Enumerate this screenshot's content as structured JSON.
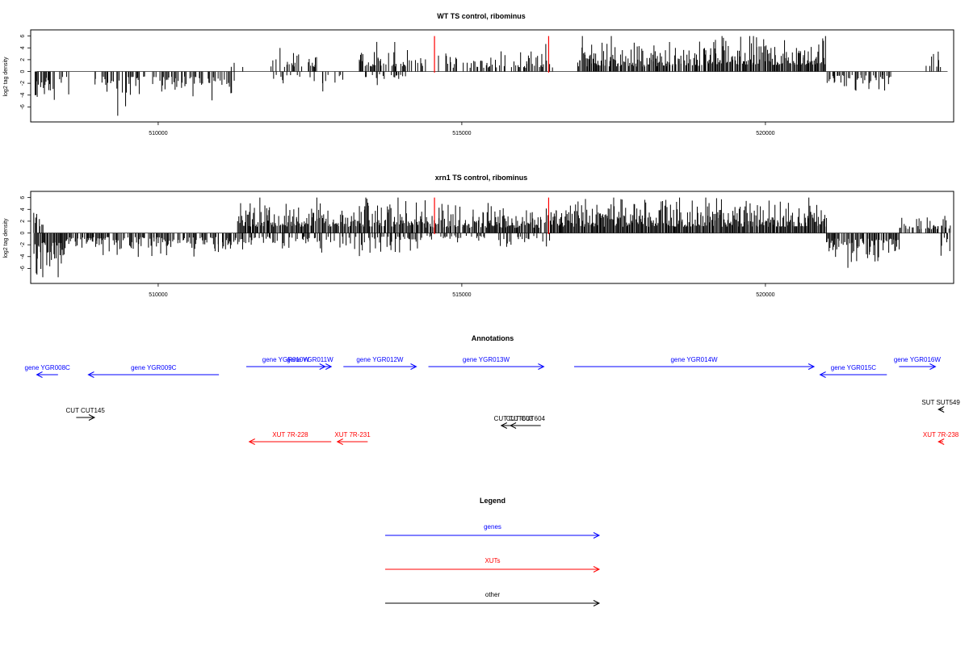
{
  "chart_data": [
    {
      "type": "bar",
      "title": "WT TS control, ribominus",
      "xlabel": "",
      "ylabel": "log2 tag density",
      "xlim": [
        507900,
        523100
      ],
      "ylim": [
        -8,
        6.5
      ],
      "x_ticks": [
        "510000",
        "515000",
        "520000"
      ],
      "y_ticks": [
        "-6",
        "-4",
        "-2",
        "0",
        "2",
        "4",
        "6"
      ],
      "markers": [
        514550,
        516430
      ],
      "marker_color": "#ff0000",
      "segments": [
        {
          "start": 507950,
          "end": 508550,
          "density": 0.55,
          "sign": -1,
          "amp": 2.6
        },
        {
          "start": 508950,
          "end": 511250,
          "density": 0.5,
          "sign": -1,
          "amp": 2.4
        },
        {
          "start": 511200,
          "end": 511400,
          "density": 0.2,
          "sign": 1,
          "amp": 1.0
        },
        {
          "start": 511800,
          "end": 512600,
          "density": 0.5,
          "sign": 1,
          "amp": 2.2
        },
        {
          "start": 511800,
          "end": 513100,
          "density": 0.25,
          "sign": -1,
          "amp": 1.6
        },
        {
          "start": 513300,
          "end": 514400,
          "density": 0.6,
          "sign": 1,
          "amp": 2.4
        },
        {
          "start": 513400,
          "end": 514200,
          "density": 0.2,
          "sign": -1,
          "amp": 1.2
        },
        {
          "start": 514600,
          "end": 516500,
          "density": 0.45,
          "sign": 1,
          "amp": 1.8
        },
        {
          "start": 516900,
          "end": 519000,
          "density": 0.85,
          "sign": 1,
          "amp": 2.4
        },
        {
          "start": 519000,
          "end": 521000,
          "density": 0.95,
          "sign": 1,
          "amp": 3.2
        },
        {
          "start": 521000,
          "end": 522100,
          "density": 0.5,
          "sign": -1,
          "amp": 1.6
        },
        {
          "start": 522600,
          "end": 522900,
          "density": 0.3,
          "sign": 1,
          "amp": 1.8
        }
      ],
      "grid": false
    },
    {
      "type": "bar",
      "title": "xrn1 TS control, ribominus",
      "xlabel": "",
      "ylabel": "log2 tag density",
      "xlim": [
        507900,
        523100
      ],
      "ylim": [
        -8,
        6.5
      ],
      "x_ticks": [
        "510000",
        "515000",
        "520000"
      ],
      "y_ticks": [
        "-6",
        "-4",
        "-2",
        "0",
        "2",
        "4",
        "6"
      ],
      "markers": [
        514550,
        516430
      ],
      "marker_color": "#ff0000",
      "segments": [
        {
          "start": 507950,
          "end": 508400,
          "density": 0.95,
          "sign": -1,
          "amp": 4.2
        },
        {
          "start": 507950,
          "end": 508100,
          "density": 0.6,
          "sign": 1,
          "amp": 2.0
        },
        {
          "start": 508400,
          "end": 511300,
          "density": 0.7,
          "sign": -1,
          "amp": 2.0
        },
        {
          "start": 511300,
          "end": 514400,
          "density": 0.9,
          "sign": 1,
          "amp": 3.0
        },
        {
          "start": 511300,
          "end": 514400,
          "density": 0.4,
          "sign": -1,
          "amp": 1.8
        },
        {
          "start": 514400,
          "end": 516500,
          "density": 0.9,
          "sign": 1,
          "amp": 2.5
        },
        {
          "start": 514400,
          "end": 516500,
          "density": 0.25,
          "sign": -1,
          "amp": 1.2
        },
        {
          "start": 516500,
          "end": 521000,
          "density": 1.0,
          "sign": 1,
          "amp": 3.0
        },
        {
          "start": 521000,
          "end": 522200,
          "density": 0.85,
          "sign": -1,
          "amp": 2.6
        },
        {
          "start": 522200,
          "end": 523050,
          "density": 0.7,
          "sign": 1,
          "amp": 1.8
        },
        {
          "start": 522800,
          "end": 523050,
          "density": 0.4,
          "sign": -1,
          "amp": 2.0
        }
      ],
      "grid": false
    },
    {
      "type": "annotation-track",
      "title": "Annotations",
      "xlim": [
        507900,
        523100
      ],
      "features": [
        {
          "label": "gene YGR008C",
          "class": "genes",
          "start": 508000,
          "end": 508350,
          "strand": "-",
          "row": 0
        },
        {
          "label": "gene YGR009C",
          "class": "genes",
          "start": 508850,
          "end": 511000,
          "strand": "-",
          "row": 0
        },
        {
          "label": "gene YGR010W",
          "class": "genes",
          "start": 511450,
          "end": 512750,
          "strand": "+",
          "row": 1
        },
        {
          "label": "gene YGR011W",
          "class": "genes",
          "start": 512150,
          "end": 512850,
          "strand": "+",
          "row": 1
        },
        {
          "label": "gene YGR012W",
          "class": "genes",
          "start": 513050,
          "end": 514250,
          "strand": "+",
          "row": 1
        },
        {
          "label": "gene YGR013W",
          "class": "genes",
          "start": 514450,
          "end": 516350,
          "strand": "+",
          "row": 1
        },
        {
          "label": "gene YGR014W",
          "class": "genes",
          "start": 516850,
          "end": 520800,
          "strand": "+",
          "row": 1
        },
        {
          "label": "gene YGR015C",
          "class": "genes",
          "start": 520900,
          "end": 522000,
          "strand": "-",
          "row": 0
        },
        {
          "label": "gene YGR016W",
          "class": "genes",
          "start": 522200,
          "end": 522800,
          "strand": "+",
          "row": 1
        },
        {
          "label": "CUT CUT145",
          "class": "other",
          "start": 508650,
          "end": 508950,
          "strand": "+",
          "row": 2
        },
        {
          "label": "CUT CUT603",
          "class": "other",
          "start": 515650,
          "end": 516050,
          "strand": "-",
          "row": 3
        },
        {
          "label": "CUT CUT604",
          "class": "other",
          "start": 515800,
          "end": 516300,
          "strand": "-",
          "row": 3
        },
        {
          "label": "SUT SUT549",
          "class": "other",
          "start": 522850,
          "end": 523450,
          "strand": "-",
          "row": 4
        },
        {
          "label": "XUT 7R-228",
          "class": "XUTs",
          "start": 511500,
          "end": 512850,
          "strand": "-",
          "row": 5
        },
        {
          "label": "XUT 7R-231",
          "class": "XUTs",
          "start": 512950,
          "end": 513450,
          "strand": "-",
          "row": 5
        },
        {
          "label": "XUT 7R-238",
          "class": "XUTs",
          "start": 522850,
          "end": 523450,
          "strand": "-",
          "row": 5
        }
      ]
    },
    {
      "type": "legend",
      "title": "Legend",
      "entries": [
        {
          "label": "genes",
          "color": "#0000ff"
        },
        {
          "label": "XUTs",
          "color": "#ff0000"
        },
        {
          "label": "other",
          "color": "#000000"
        }
      ]
    }
  ],
  "colors": {
    "genes": "#0000ff",
    "XUTs": "#ff0000",
    "other": "#000000",
    "markers": "#ff0000"
  }
}
